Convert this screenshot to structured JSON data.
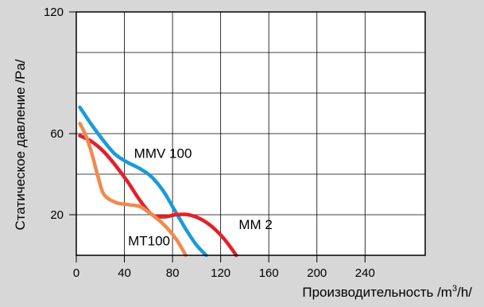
{
  "chart_data": {
    "type": "line",
    "title": "",
    "xlabel": "Производительность /m³/h/",
    "xlabel_parts": {
      "main": "Производительность /m",
      "sup": "3",
      "tail": "/h/"
    },
    "ylabel": "Статическое давление /Pa/",
    "xlim": [
      0,
      290
    ],
    "ylim": [
      0,
      120
    ],
    "x_ticks": [
      0,
      40,
      80,
      120,
      160,
      200,
      240
    ],
    "y_ticks": [
      20,
      60,
      120
    ],
    "grid": true,
    "grid_x": [
      40,
      80,
      120,
      160,
      200,
      240
    ],
    "grid_y": [
      20,
      40,
      60,
      80,
      100
    ],
    "legend": "inline labels",
    "series": [
      {
        "name": "MMV 100",
        "color": "#1a9bd8",
        "label_at": [
          48,
          48
        ],
        "x": [
          3,
          12,
          22,
          32,
          42,
          52,
          62,
          72,
          82,
          92,
          100,
          108
        ],
        "y": [
          73,
          65,
          57,
          50,
          46,
          43,
          39,
          32,
          22,
          12,
          5,
          0
        ]
      },
      {
        "name": "MM 2",
        "color": "#e3202a",
        "label_at": [
          135,
          13
        ],
        "x": [
          3,
          13,
          23,
          33,
          43,
          53,
          63,
          73,
          83,
          93,
          103,
          113,
          123,
          133
        ],
        "y": [
          59,
          56,
          51,
          44,
          36,
          27,
          20,
          19,
          20,
          20,
          18,
          14,
          8,
          0
        ]
      },
      {
        "name": "MT100",
        "color": "#f08a4b",
        "label_at": [
          43,
          5
        ],
        "x": [
          3,
          8,
          13,
          18,
          23,
          33,
          43,
          53,
          63,
          73,
          83,
          91
        ],
        "y": [
          65,
          59,
          50,
          39,
          30,
          26,
          25,
          24,
          20,
          15,
          8,
          0
        ]
      }
    ]
  }
}
